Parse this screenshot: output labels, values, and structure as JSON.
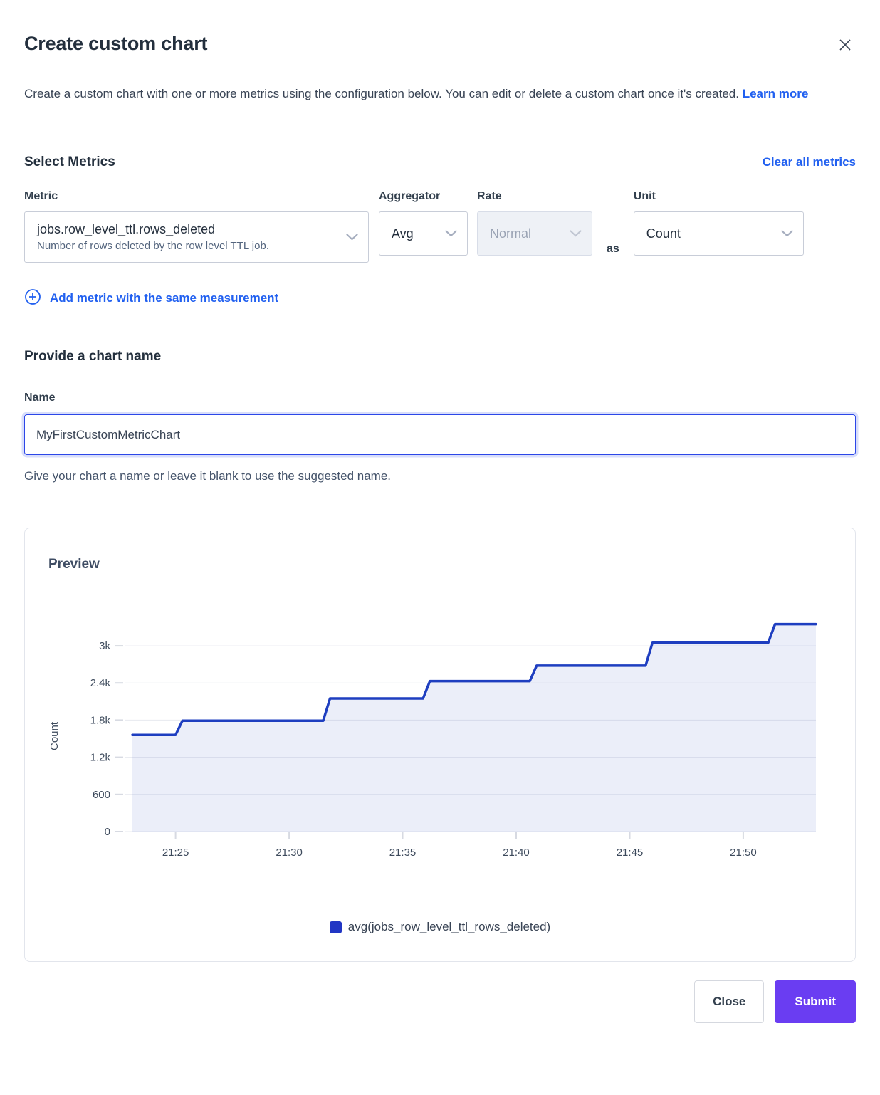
{
  "colors": {
    "link_blue": "#2160f0",
    "series_blue": "#1e3ec0",
    "series_fill": "rgba(30,62,192,0.09)",
    "submit_purple": "#6a3df2",
    "text_dark": "#394455",
    "disabled_bg": "#eef1f6"
  },
  "header": {
    "title": "Create custom chart"
  },
  "intro": {
    "text": "Create a custom chart with one or more metrics using the configuration below. You can edit or delete a custom chart once it's created.",
    "link_label": "Learn more"
  },
  "metrics_section": {
    "title": "Select Metrics",
    "clear_label": "Clear all metrics",
    "metric": {
      "label": "Metric",
      "value": "jobs.row_level_ttl.rows_deleted",
      "description": "Number of rows deleted by the row level TTL job."
    },
    "aggregator": {
      "label": "Aggregator",
      "value": "Avg"
    },
    "rate": {
      "label": "Rate",
      "value": "Normal",
      "disabled": true
    },
    "as_label": "as",
    "unit": {
      "label": "Unit",
      "value": "Count"
    },
    "add_metric_label": "Add metric with the same measurement"
  },
  "name_section": {
    "title": "Provide a chart name",
    "label": "Name",
    "value": "MyFirstCustomMetricChart",
    "helper": "Give your chart a name or leave it blank to use the suggested name."
  },
  "preview": {
    "title": "Preview",
    "legend": [
      {
        "label": "avg(jobs_row_level_ttl_rows_deleted)",
        "color": "#2136c4"
      }
    ]
  },
  "footer": {
    "close_label": "Close",
    "submit_label": "Submit"
  },
  "chart_data": {
    "type": "area",
    "title": "Preview",
    "xlabel": "",
    "ylabel": "Count",
    "x_axis_note": "time of day, minutes after 21:00",
    "x_range": [
      23.1,
      53.2
    ],
    "y_range": [
      0,
      3426
    ],
    "grid": "horizontal-only",
    "legend_position": "bottom-center",
    "x_ticks": [
      {
        "t": 25,
        "label": "21:25"
      },
      {
        "t": 30,
        "label": "21:30"
      },
      {
        "t": 35,
        "label": "21:35"
      },
      {
        "t": 40,
        "label": "21:40"
      },
      {
        "t": 45,
        "label": "21:45"
      },
      {
        "t": 50,
        "label": "21:50"
      }
    ],
    "y_ticks": [
      {
        "v": 0,
        "label": "0"
      },
      {
        "v": 600,
        "label": "600"
      },
      {
        "v": 1200,
        "label": "1.2k"
      },
      {
        "v": 1800,
        "label": "1.8k"
      },
      {
        "v": 2400,
        "label": "2.4k"
      },
      {
        "v": 3000,
        "label": "3k"
      }
    ],
    "series": [
      {
        "name": "avg(jobs_row_level_ttl_rows_deleted)",
        "color": "#1e3ec0",
        "fill": "rgba(30,62,192,0.09)",
        "points": [
          [
            23.1,
            1560
          ],
          [
            25.0,
            1560
          ],
          [
            25.3,
            1790
          ],
          [
            31.5,
            1790
          ],
          [
            31.8,
            2150
          ],
          [
            35.9,
            2150
          ],
          [
            36.2,
            2430
          ],
          [
            40.6,
            2430
          ],
          [
            40.9,
            2680
          ],
          [
            45.7,
            2680
          ],
          [
            46.0,
            3050
          ],
          [
            51.1,
            3050
          ],
          [
            51.4,
            3350
          ],
          [
            53.2,
            3350
          ]
        ]
      }
    ]
  }
}
